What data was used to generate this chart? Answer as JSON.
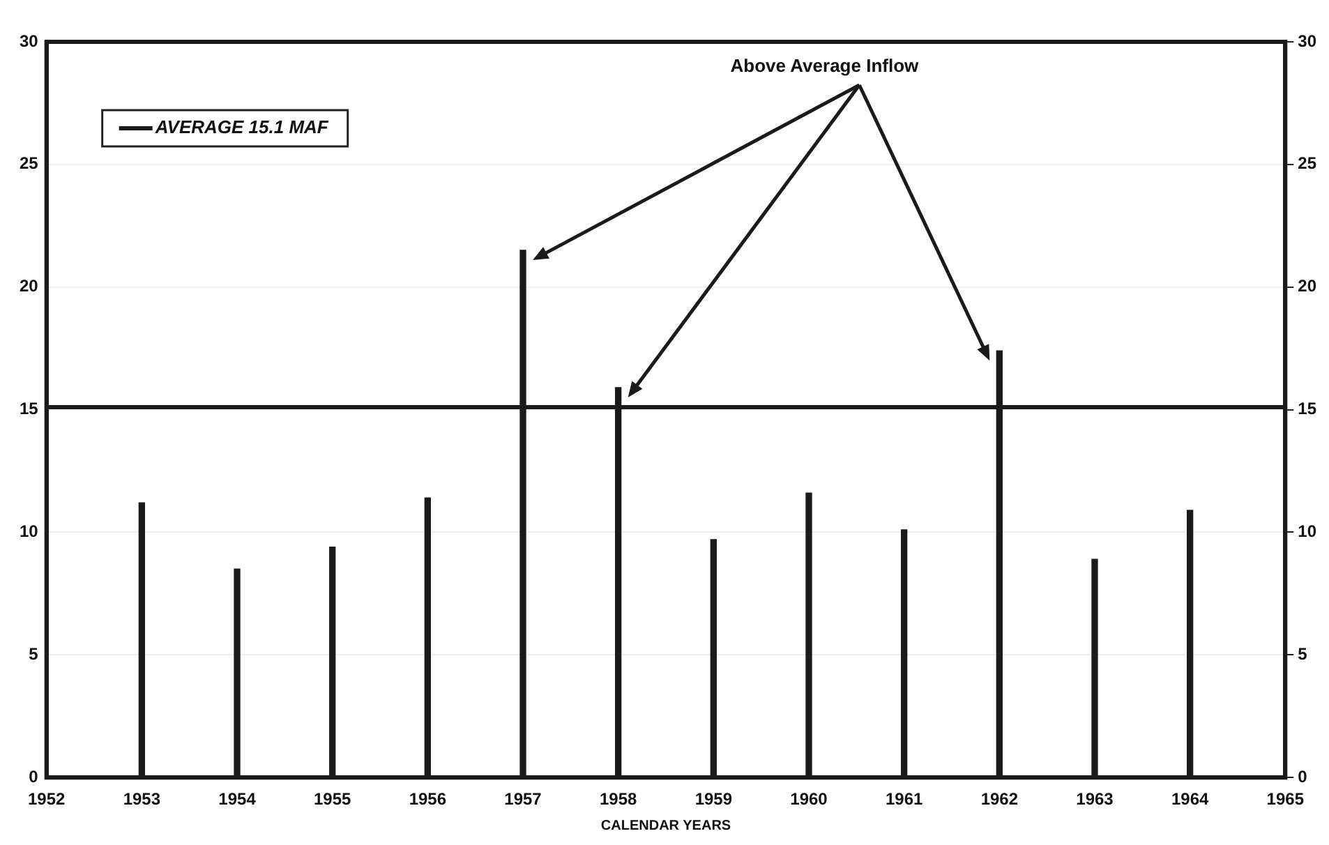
{
  "chart_data": {
    "type": "bar",
    "xlabel": "CALENDAR YEARS",
    "x": [
      1953,
      1954,
      1955,
      1956,
      1957,
      1958,
      1959,
      1960,
      1961,
      1962,
      1963,
      1964
    ],
    "series": [
      {
        "color": "#1a1a1a",
        "values": [
          11.2,
          8.5,
          9.4,
          11.4,
          21.5,
          15.9,
          9.7,
          11.6,
          10.1,
          17.4,
          8.9,
          10.9
        ]
      }
    ],
    "xlim": [
      1952,
      1965
    ],
    "xticks": [
      1952,
      1953,
      1954,
      1955,
      1956,
      1957,
      1958,
      1959,
      1960,
      1961,
      1962,
      1963,
      1964,
      1965
    ],
    "ylim": [
      0,
      30
    ],
    "yticks": [
      0,
      5,
      10,
      15,
      20,
      25,
      30
    ],
    "y2lim": [
      0,
      30
    ],
    "y2ticks": [
      0,
      5,
      10,
      15,
      20,
      25,
      30
    ],
    "ref_lines": [
      {
        "axis": "y",
        "value": 15.1,
        "label": "AVERAGE 15.1 MAF",
        "color": "#1a1a1a"
      }
    ],
    "annotations": [
      "Above Average Inflow"
    ],
    "grid": "y",
    "legend": "top left"
  }
}
